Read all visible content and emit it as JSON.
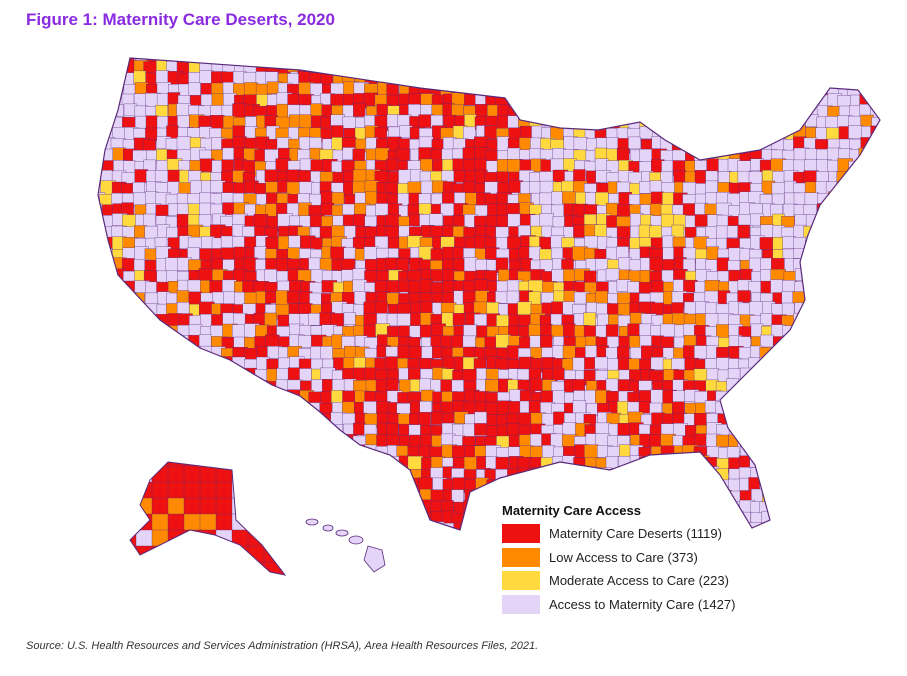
{
  "title": "Figure 1: Maternity Care Deserts, 2020",
  "legend": {
    "title": "Maternity Care Access",
    "items": [
      {
        "label": "Maternity Care Deserts (1119)",
        "color": "#ee1111"
      },
      {
        "label": "Low Access to Care (373)",
        "color": "#ff8a00"
      },
      {
        "label": "Moderate Access to Care (223)",
        "color": "#ffd93d"
      },
      {
        "label": "Access to Maternity Care (1427)",
        "color": "#e4d4f7"
      }
    ]
  },
  "source": "Source: U.S. Health Resources and Services Administration (HRSA), Area Health Resources Files, 2021.",
  "colors": {
    "desert": "#ee1111",
    "low": "#ff8a00",
    "moderate": "#ffd93d",
    "access": "#e4d4f7",
    "border": "#5a2a7a",
    "title": "#8a2be2"
  },
  "icons": [
    "united-states-map",
    "alaska-map",
    "hawaii-map"
  ]
}
